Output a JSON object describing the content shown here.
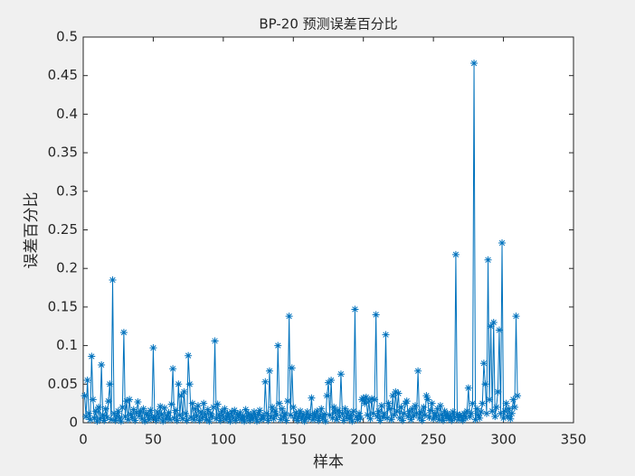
{
  "chart_data": {
    "type": "line",
    "title": "BP-20 预测误差百分比",
    "xlabel": "样本",
    "ylabel": "误差百分比",
    "color": "#0072bd",
    "xlim": [
      0,
      350
    ],
    "xticks": [
      0,
      50,
      100,
      150,
      200,
      250,
      300,
      350
    ],
    "ylim": [
      0,
      0.5
    ],
    "yticks": [
      0,
      0.05,
      0.1,
      0.15,
      0.2,
      0.25,
      0.3,
      0.35,
      0.4,
      0.45,
      0.5
    ],
    "x": [
      1,
      2,
      3,
      4,
      5,
      6,
      7,
      8,
      9,
      10,
      11,
      12,
      13,
      14,
      15,
      16,
      17,
      18,
      19,
      20,
      21,
      22,
      23,
      24,
      25,
      26,
      27,
      28,
      29,
      30,
      31,
      32,
      33,
      34,
      35,
      36,
      37,
      38,
      39,
      40,
      41,
      42,
      43,
      44,
      45,
      46,
      47,
      48,
      49,
      50,
      51,
      52,
      53,
      54,
      55,
      56,
      57,
      58,
      59,
      60,
      61,
      62,
      63,
      64,
      65,
      66,
      67,
      68,
      69,
      70,
      71,
      72,
      73,
      74,
      75,
      76,
      77,
      78,
      79,
      80,
      81,
      82,
      83,
      84,
      85,
      86,
      87,
      88,
      89,
      90,
      91,
      92,
      93,
      94,
      95,
      96,
      97,
      98,
      99,
      100,
      101,
      102,
      103,
      104,
      105,
      106,
      107,
      108,
      109,
      110,
      111,
      112,
      113,
      114,
      115,
      116,
      117,
      118,
      119,
      120,
      121,
      122,
      123,
      124,
      125,
      126,
      127,
      128,
      129,
      130,
      131,
      132,
      133,
      134,
      135,
      136,
      137,
      138,
      139,
      140,
      141,
      142,
      143,
      144,
      145,
      146,
      147,
      148,
      149,
      150,
      151,
      152,
      153,
      154,
      155,
      156,
      157,
      158,
      159,
      160,
      161,
      162,
      163,
      164,
      165,
      166,
      167,
      168,
      169,
      170,
      171,
      172,
      173,
      174,
      175,
      176,
      177,
      178,
      179,
      180,
      181,
      182,
      183,
      184,
      185,
      186,
      187,
      188,
      189,
      190,
      191,
      192,
      193,
      194,
      195,
      196,
      197,
      198,
      199,
      200,
      201,
      202,
      203,
      204,
      205,
      206,
      207,
      208,
      209,
      210,
      211,
      212,
      213,
      214,
      215,
      216,
      217,
      218,
      219,
      220,
      221,
      222,
      223,
      224,
      225,
      226,
      227,
      228,
      229,
      230,
      231,
      232,
      233,
      234,
      235,
      236,
      237,
      238,
      239,
      240,
      241,
      242,
      243,
      244,
      245,
      246,
      247,
      248,
      249,
      250,
      251,
      252,
      253,
      254,
      255,
      256,
      257,
      258,
      259,
      260,
      261,
      262,
      263,
      264,
      265,
      266,
      267,
      268,
      269,
      270,
      271,
      272,
      273,
      274,
      275,
      276,
      277,
      278,
      279,
      280,
      281,
      282,
      283,
      284,
      285,
      286,
      287,
      288,
      289,
      290,
      291,
      292,
      293,
      294,
      295,
      296,
      297,
      298,
      299,
      300,
      301,
      302,
      303,
      304,
      305,
      306,
      307,
      308,
      309,
      310
    ],
    "values": [
      0.035,
      0.008,
      0.055,
      0.012,
      0.004,
      0.086,
      0.03,
      0.006,
      0.015,
      0.002,
      0.02,
      0.005,
      0.075,
      0.01,
      0.003,
      0.018,
      0.007,
      0.028,
      0.05,
      0.004,
      0.185,
      0.012,
      0.003,
      0.009,
      0.015,
      0.006,
      0.002,
      0.02,
      0.117,
      0.008,
      0.028,
      0.004,
      0.03,
      0.011,
      0.006,
      0.017,
      0.003,
      0.013,
      0.027,
      0.009,
      0.015,
      0.005,
      0.018,
      0.002,
      0.012,
      0.01,
      0.004,
      0.016,
      0.007,
      0.097,
      0.008,
      0.003,
      0.014,
      0.006,
      0.021,
      0.011,
      0.002,
      0.019,
      0.005,
      0.009,
      0.013,
      0.004,
      0.024,
      0.07,
      0.006,
      0.016,
      0.003,
      0.05,
      0.01,
      0.035,
      0.005,
      0.04,
      0.012,
      0.003,
      0.087,
      0.05,
      0.007,
      0.025,
      0.004,
      0.018,
      0.009,
      0.022,
      0.003,
      0.014,
      0.006,
      0.025,
      0.011,
      0.004,
      0.017,
      0.002,
      0.012,
      0.008,
      0.02,
      0.106,
      0.005,
      0.024,
      0.01,
      0.003,
      0.015,
      0.007,
      0.018,
      0.004,
      0.012,
      0.009,
      0.002,
      0.014,
      0.006,
      0.016,
      0.003,
      0.011,
      0.007,
      0.013,
      0.004,
      0.009,
      0.002,
      0.017,
      0.006,
      0.012,
      0.003,
      0.01,
      0.005,
      0.014,
      0.008,
      0.002,
      0.011,
      0.016,
      0.004,
      0.009,
      0.006,
      0.053,
      0.012,
      0.003,
      0.067,
      0.008,
      0.02,
      0.005,
      0.015,
      0.01,
      0.1,
      0.025,
      0.004,
      0.018,
      0.007,
      0.012,
      0.003,
      0.028,
      0.138,
      0.01,
      0.071,
      0.02,
      0.006,
      0.013,
      0.003,
      0.009,
      0.015,
      0.005,
      0.011,
      0.002,
      0.008,
      0.014,
      0.006,
      0.01,
      0.032,
      0.004,
      0.012,
      0.007,
      0.015,
      0.003,
      0.009,
      0.018,
      0.005,
      0.011,
      0.002,
      0.035,
      0.052,
      0.01,
      0.055,
      0.006,
      0.02,
      0.013,
      0.004,
      0.016,
      0.008,
      0.063,
      0.012,
      0.003,
      0.018,
      0.007,
      0.014,
      0.005,
      0.01,
      0.002,
      0.015,
      0.147,
      0.008,
      0.004,
      0.012,
      0.006,
      0.03,
      0.032,
      0.025,
      0.033,
      0.01,
      0.028,
      0.005,
      0.031,
      0.012,
      0.03,
      0.14,
      0.008,
      0.015,
      0.003,
      0.022,
      0.007,
      0.012,
      0.114,
      0.006,
      0.025,
      0.018,
      0.004,
      0.035,
      0.01,
      0.04,
      0.015,
      0.038,
      0.006,
      0.02,
      0.003,
      0.012,
      0.025,
      0.028,
      0.008,
      0.015,
      0.004,
      0.018,
      0.009,
      0.022,
      0.012,
      0.067,
      0.006,
      0.014,
      0.003,
      0.02,
      0.01,
      0.035,
      0.03,
      0.007,
      0.016,
      0.025,
      0.005,
      0.012,
      0.008,
      0.018,
      0.004,
      0.022,
      0.01,
      0.003,
      0.015,
      0.007,
      0.012,
      0.005,
      0.009,
      0.003,
      0.014,
      0.006,
      0.218,
      0.011,
      0.004,
      0.01,
      0.008,
      0.003,
      0.012,
      0.006,
      0.015,
      0.045,
      0.008,
      0.012,
      0.025,
      0.466,
      0.004,
      0.018,
      0.01,
      0.006,
      0.014,
      0.025,
      0.077,
      0.05,
      0.012,
      0.211,
      0.03,
      0.125,
      0.015,
      0.13,
      0.008,
      0.02,
      0.04,
      0.12,
      0.012,
      0.233,
      0.006,
      0.015,
      0.025,
      0.008,
      0.018,
      0.005,
      0.012,
      0.03,
      0.02,
      0.138,
      0.035
    ]
  }
}
